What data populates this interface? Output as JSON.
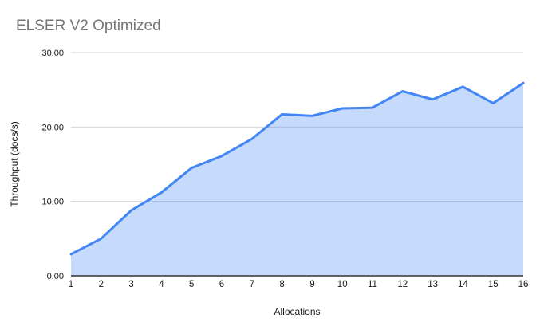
{
  "header": {
    "title": "ELSER V2 Optimized"
  },
  "chart_data": {
    "type": "area",
    "title": "ELSER V2 Optimized",
    "xlabel": "Allocations",
    "ylabel": "Throughput (docs/s)",
    "categories": [
      "1",
      "2",
      "3",
      "4",
      "5",
      "6",
      "7",
      "8",
      "9",
      "10",
      "11",
      "12",
      "13",
      "14",
      "15",
      "16"
    ],
    "values": [
      2.9,
      5.0,
      8.8,
      11.2,
      14.5,
      16.1,
      18.4,
      21.7,
      21.5,
      22.5,
      22.6,
      24.8,
      23.7,
      25.4,
      23.2,
      25.9
    ],
    "ylim": [
      0,
      30
    ],
    "yticks": {
      "values": [
        0,
        10,
        20,
        30
      ],
      "labels": [
        "0.00",
        "10.00",
        "20.00",
        "30.00"
      ]
    },
    "grid": true,
    "legend": "none",
    "colors": {
      "line": "#4285f4",
      "fill": "rgba(66,133,244,0.3)",
      "grid": "#d6d6d6",
      "axis": "#333333",
      "title": "#757575",
      "tick_text": "#1a1a1a",
      "axis_title_text": "#1a1a1a"
    }
  }
}
